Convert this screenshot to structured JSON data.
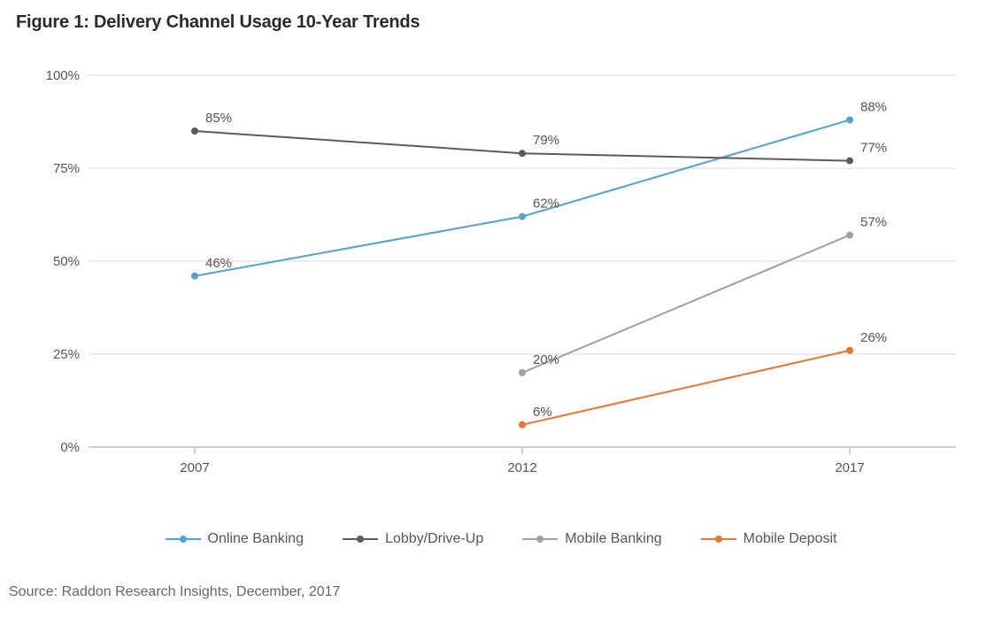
{
  "title": "Figure 1: Delivery Channel Usage 10-Year Trends",
  "source": "Source: Raddon Research Insights, December, 2017",
  "chart": {
    "type": "line",
    "background_color": "#ffffff",
    "axis_color": "#bfbfbf",
    "grid_color": "#d9d9d9",
    "label_color": "#555555",
    "label_fontsize": 15,
    "title_color": "#2a2a2a",
    "title_fontsize": 20,
    "line_width": 2,
    "marker_radius": 4,
    "ylim": [
      0,
      100
    ],
    "ytick_step": 25,
    "y_format": "percent",
    "x_categories": [
      "2007",
      "2012",
      "2017"
    ],
    "series": [
      {
        "name": "Online Banking",
        "color": "#4fa3d6",
        "points": [
          {
            "xi": 0,
            "y": 46,
            "label": "46%"
          },
          {
            "xi": 1,
            "y": 62,
            "label": "62%"
          },
          {
            "xi": 2,
            "y": 88,
            "label": "88%"
          }
        ]
      },
      {
        "name": "Lobby/Drive-Up",
        "color": "#5b5b5b",
        "points": [
          {
            "xi": 0,
            "y": 85,
            "label": "85%"
          },
          {
            "xi": 1,
            "y": 79,
            "label": "79%"
          },
          {
            "xi": 2,
            "y": 77,
            "label": "77%"
          }
        ]
      },
      {
        "name": "Mobile Banking",
        "color": "#a3a098",
        "points": [
          {
            "xi": 1,
            "y": 20,
            "label": "20%"
          },
          {
            "xi": 2,
            "y": 57,
            "label": "57%"
          }
        ]
      },
      {
        "name": "Mobile Deposit",
        "color": "#e8762d",
        "points": [
          {
            "xi": 1,
            "y": 6,
            "label": "6%"
          },
          {
            "xi": 2,
            "y": 26,
            "label": "26%"
          }
        ]
      }
    ],
    "legend_position": "bottom"
  }
}
